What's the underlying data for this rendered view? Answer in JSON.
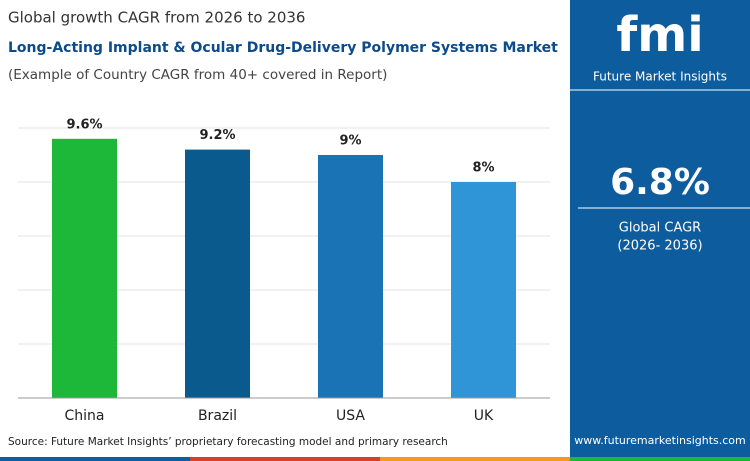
{
  "chart_data": {
    "type": "bar",
    "title": "Global growth CAGR from 2026 to 2036",
    "subtitle": "Long-Acting Implant & Ocular Drug-Delivery Polymer Systems Market",
    "note": "(Example of Country CAGR from 40+ covered in Report)",
    "categories": [
      "China",
      "Brazil",
      "USA",
      "UK"
    ],
    "values": [
      9.6,
      9.2,
      9,
      8
    ],
    "value_labels": [
      "9.6%",
      "9.2%",
      "9%",
      "8%"
    ],
    "colors": [
      "#1db83a",
      "#0b5a8e",
      "#1a73b5",
      "#2f95d6"
    ],
    "ylim": [
      0,
      10
    ],
    "yticks": [
      0,
      2,
      4,
      6,
      8,
      10
    ],
    "grid": true,
    "source": "Source: Future Market Insights’ proprietary forecasting model and primary research"
  },
  "panel": {
    "logo": "fmi",
    "brand": "Future Market Insights",
    "headline": "6.8%",
    "headline_label": "Global CAGR",
    "period": "(2026- 2036)",
    "url": "www.futuremarketinsights.com"
  }
}
